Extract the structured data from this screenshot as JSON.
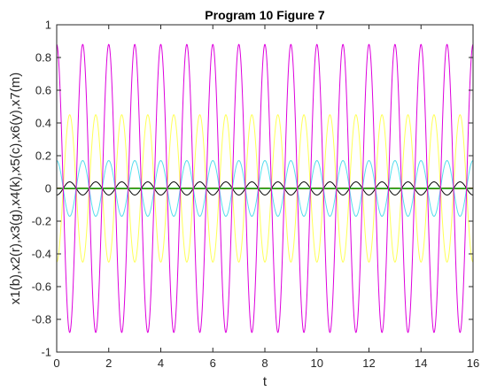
{
  "chart_data": {
    "type": "line",
    "title": "Program 10 Figure  7",
    "xlabel": "t",
    "ylabel": "x1(b),x2(r),x3(g),x4(k),x5(c),x6(y),x7(m)",
    "xlim": [
      0,
      16
    ],
    "ylim": [
      -1,
      1
    ],
    "xticks": [
      0,
      2,
      4,
      6,
      8,
      10,
      12,
      14,
      16
    ],
    "yticks": [
      -1,
      -0.8,
      -0.6,
      -0.4,
      -0.2,
      0,
      0.2,
      0.4,
      0.6,
      0.8,
      1
    ],
    "ytick_labels": [
      "-1",
      "-0.8",
      "-0.6",
      "-0.4",
      "-0.2",
      "0",
      "0.2",
      "0.4",
      "0.6",
      "0.8",
      "1"
    ],
    "grid": false,
    "background": "#ffffff",
    "series": [
      {
        "color": "#0000ff",
        "amplitude": 0.003,
        "period": 1.0,
        "phase_deg": 90
      },
      {
        "color": "#ff0000",
        "amplitude": 0.003,
        "period": 1.0,
        "phase_deg": 90
      },
      {
        "color": "#00aa00",
        "amplitude": 0.0,
        "period": 1.0,
        "phase_deg": 0
      },
      {
        "color": "#000000",
        "amplitude": 0.04,
        "period": 1.0,
        "phase_deg": 270
      },
      {
        "color": "#55ddee",
        "amplitude": 0.17,
        "period": 1.0,
        "phase_deg": 90
      },
      {
        "color": "#ffff55",
        "amplitude": 0.45,
        "period": 1.0,
        "phase_deg": 270
      },
      {
        "color": "#dd00dd",
        "amplitude": 0.88,
        "period": 1.0,
        "phase_deg": 90
      }
    ]
  }
}
